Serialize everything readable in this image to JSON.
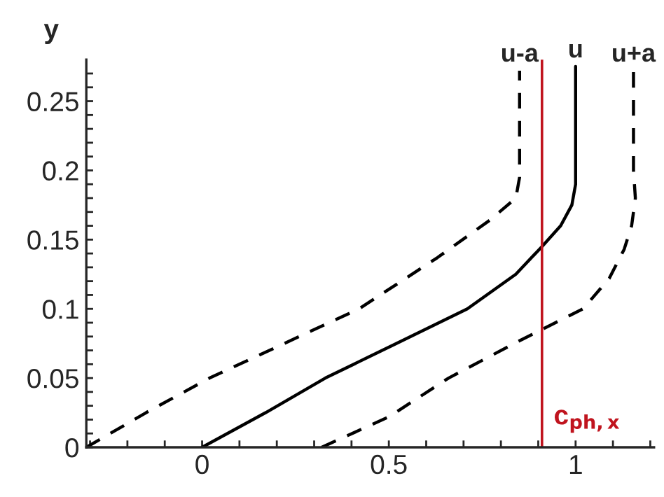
{
  "chart_data": {
    "type": "line",
    "ylabel": "y",
    "xlim": [
      -0.31,
      1.21
    ],
    "ylim": [
      0,
      0.28
    ],
    "xticks": [
      {
        "value": -0.3,
        "label": null
      },
      {
        "value": -0.2,
        "label": null
      },
      {
        "value": -0.1,
        "label": null
      },
      0,
      {
        "value": 0.1,
        "label": null
      },
      {
        "value": 0.2,
        "label": null
      },
      {
        "value": 0.3,
        "label": null
      },
      {
        "value": 0.4,
        "label": null
      },
      0.5,
      {
        "value": 0.6,
        "label": null
      },
      {
        "value": 0.7,
        "label": null
      },
      {
        "value": 0.8,
        "label": null
      },
      {
        "value": 0.9,
        "label": null
      },
      1,
      {
        "value": 1.1,
        "label": null
      },
      {
        "value": 1.2,
        "label": null
      }
    ],
    "yticks": [
      0,
      {
        "value": 0.01,
        "label": null
      },
      {
        "value": 0.02,
        "label": null
      },
      {
        "value": 0.03,
        "label": null
      },
      {
        "value": 0.04,
        "label": null
      },
      0.05,
      {
        "value": 0.06,
        "label": null
      },
      {
        "value": 0.07,
        "label": null
      },
      {
        "value": 0.08,
        "label": null
      },
      {
        "value": 0.09,
        "label": null
      },
      0.1,
      {
        "value": 0.11,
        "label": null
      },
      {
        "value": 0.12,
        "label": null
      },
      {
        "value": 0.13,
        "label": null
      },
      {
        "value": 0.14,
        "label": null
      },
      0.15,
      {
        "value": 0.16,
        "label": null
      },
      {
        "value": 0.17,
        "label": null
      },
      {
        "value": 0.18,
        "label": null
      },
      {
        "value": 0.19,
        "label": null
      },
      0.2,
      {
        "value": 0.21,
        "label": null
      },
      {
        "value": 0.22,
        "label": null
      },
      {
        "value": 0.23,
        "label": null
      },
      {
        "value": 0.24,
        "label": null
      },
      0.25,
      {
        "value": 0.26,
        "label": null
      },
      {
        "value": 0.27,
        "label": null
      }
    ],
    "grid": false,
    "legend": false,
    "marker": "none",
    "series": [
      {
        "name": "u-a",
        "color": "#000000",
        "line_style": "dashed",
        "x": [
          -0.31,
          -0.15,
          0.02,
          0.22,
          0.42,
          0.63,
          0.77,
          0.84,
          0.85,
          0.85
        ],
        "values": [
          0.0,
          0.025,
          0.05,
          0.075,
          0.1,
          0.137,
          0.164,
          0.18,
          0.195,
          0.272
        ]
      },
      {
        "name": "u",
        "color": "#000000",
        "line_style": "solid",
        "x": [
          0,
          0.17,
          0.33,
          0.52,
          0.71,
          0.84,
          0.91,
          0.96,
          0.99,
          1.0,
          1.0
        ],
        "values": [
          0,
          0.025,
          0.05,
          0.075,
          0.1,
          0.125,
          0.145,
          0.16,
          0.175,
          0.19,
          0.275
        ]
      },
      {
        "name": "u+a",
        "color": "#000000",
        "line_style": "dashed",
        "x": [
          0.32,
          0.5,
          0.66,
          0.85,
          1.02,
          1.09,
          1.13,
          1.15,
          1.16,
          1.155,
          1.155
        ],
        "values": [
          0,
          0.022,
          0.05,
          0.077,
          0.1,
          0.122,
          0.143,
          0.16,
          0.18,
          0.2,
          0.272
        ]
      }
    ],
    "ref_lines": [
      {
        "axis": "x",
        "value": 0.91,
        "label": "c$_{ph,x}$",
        "color": "#c0141e"
      }
    ]
  }
}
